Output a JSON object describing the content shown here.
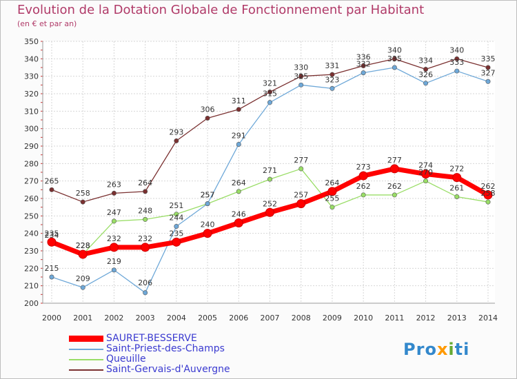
{
  "chart_data": {
    "type": "line",
    "title": "Evolution de la Dotation Globale de Fonctionnement par Habitant",
    "subtitle": "(en € et par an)",
    "x": [
      "2000",
      "2001",
      "2002",
      "2003",
      "2004",
      "2005",
      "2006",
      "2007",
      "2008",
      "2009",
      "2010",
      "2011",
      "2012",
      "2013",
      "2014"
    ],
    "ylim": [
      200,
      350
    ],
    "yticks": [
      200,
      210,
      220,
      230,
      240,
      250,
      260,
      270,
      280,
      290,
      300,
      310,
      320,
      330,
      340,
      350
    ],
    "grid": true,
    "legend_position": "bottom-left",
    "series": [
      {
        "name": "SAURET-BESSERVE",
        "color": "#ff0000",
        "values": [
          235,
          228,
          232,
          232,
          235,
          240,
          246,
          252,
          257,
          264,
          273,
          277,
          274,
          272,
          262
        ]
      },
      {
        "name": "Saint-Priest-des-Champs",
        "color": "#6ea8d8",
        "values": [
          215,
          209,
          219,
          206,
          244,
          257,
          291,
          315,
          325,
          323,
          332,
          335,
          326,
          333,
          327
        ]
      },
      {
        "name": "Queuille",
        "color": "#99dd66",
        "values": [
          234,
          228,
          247,
          248,
          251,
          257,
          264,
          271,
          277,
          255,
          262,
          262,
          270,
          261,
          258
        ]
      },
      {
        "name": "Saint-Gervais-d'Auvergne",
        "color": "#7a3030",
        "values": [
          265,
          258,
          263,
          264,
          293,
          306,
          311,
          321,
          330,
          331,
          336,
          340,
          334,
          340,
          335
        ]
      }
    ]
  },
  "logo": {
    "text": "Proxiti",
    "letters": [
      "P",
      "r",
      "o",
      "x",
      "i",
      "t",
      "i"
    ],
    "colors": [
      "#3388cc",
      "#3388cc",
      "#3388cc",
      "#ff9900",
      "#66aa33",
      "#3388cc",
      "#3388cc"
    ]
  }
}
